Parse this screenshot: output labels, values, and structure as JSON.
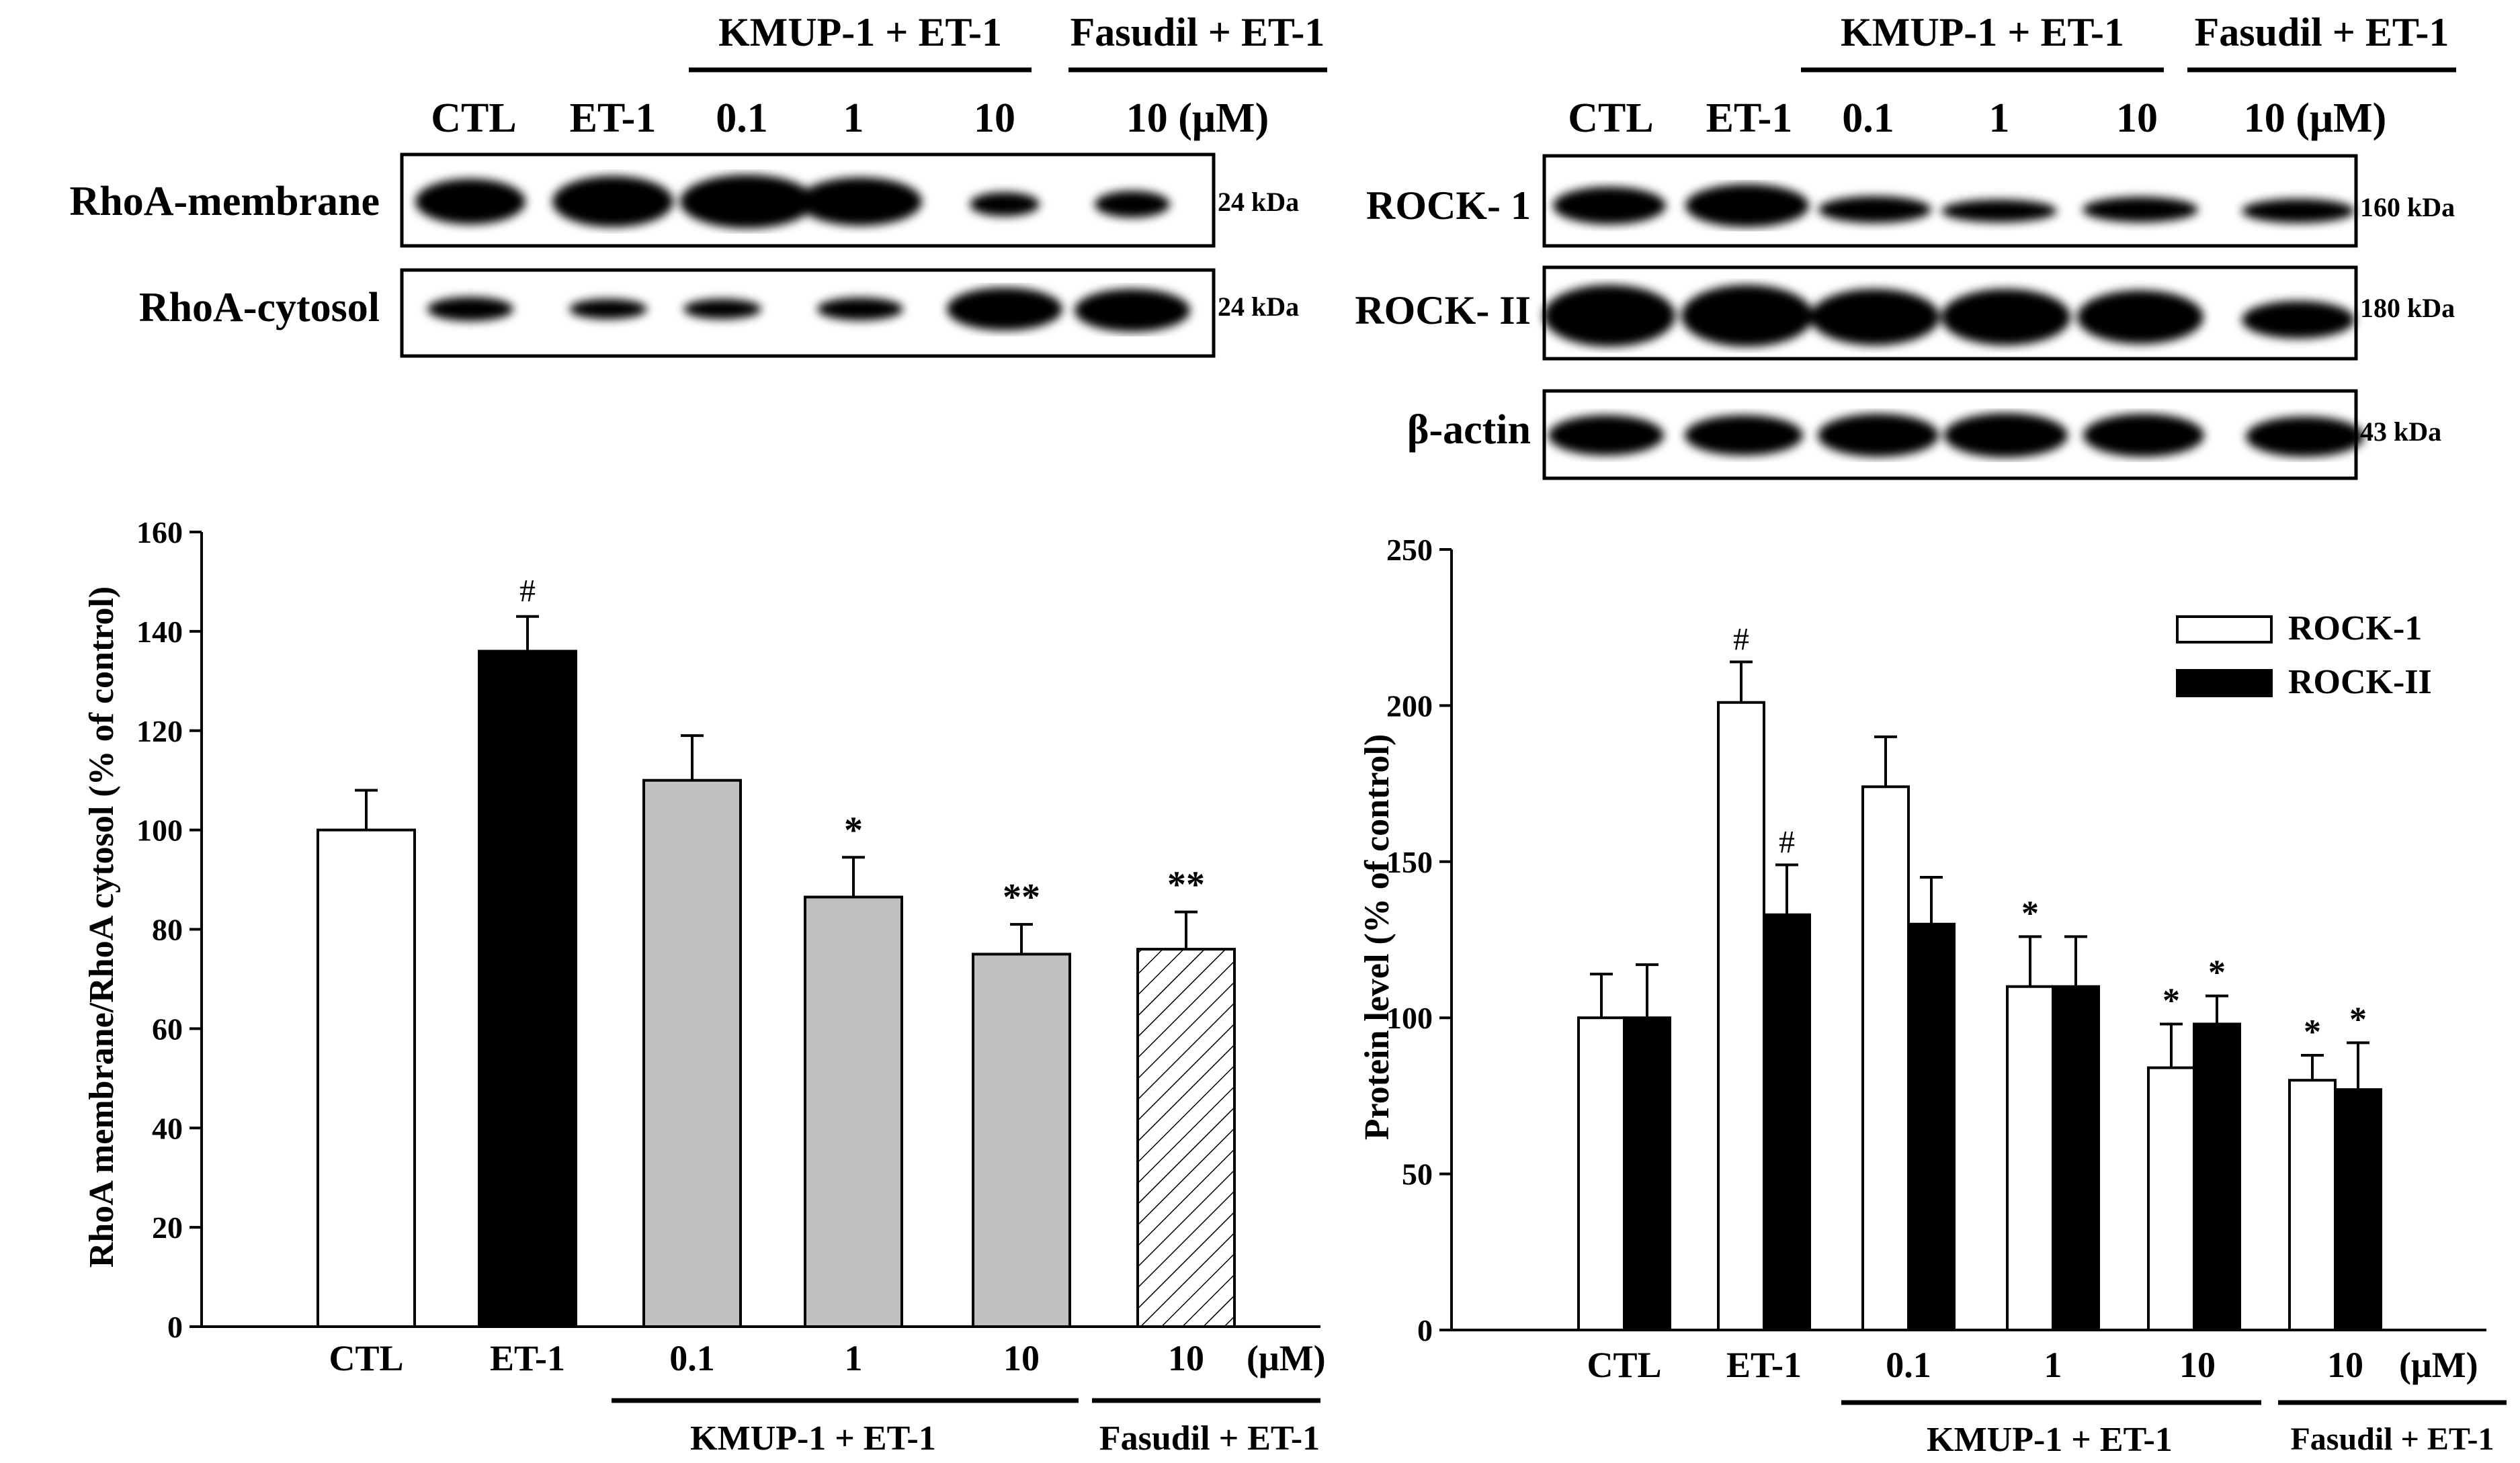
{
  "blot_left": {
    "top_group_labels": [
      "KMUP-1 + ET-1",
      "Fasudil + ET-1"
    ],
    "lane_labels": [
      "CTL",
      "ET-1",
      "0.1",
      "1",
      "10",
      "10 (μM)"
    ],
    "rows": [
      {
        "name": "RhoA-membrane",
        "kda": "24 kDa"
      },
      {
        "name": "RhoA-cytosol",
        "kda": "24 kDa"
      }
    ]
  },
  "blot_right": {
    "top_group_labels": [
      "KMUP-1 + ET-1",
      "Fasudil + ET-1"
    ],
    "lane_labels": [
      "CTL",
      "ET-1",
      "0.1",
      "1",
      "10",
      "10 (μM)"
    ],
    "rows": [
      {
        "name": "ROCK- 1",
        "kda": "160 kDa"
      },
      {
        "name": "ROCK- II",
        "kda": "180 kDa"
      },
      {
        "name": "β-actin",
        "kda": "43 kDa"
      }
    ]
  },
  "chart_data": [
    {
      "type": "bar",
      "ylabel": "RhoA membrane/RhoA cytosol (% of control)",
      "ylim": [
        0,
        160
      ],
      "yticks": [
        0,
        20,
        40,
        60,
        80,
        100,
        120,
        140,
        160
      ],
      "categories": [
        "CTL",
        "ET-1",
        "0.1",
        "1",
        "10",
        "10"
      ],
      "unit_label": "(μM)",
      "values": [
        100,
        136,
        110,
        86.5,
        75,
        76
      ],
      "errors": [
        8,
        7,
        9,
        8,
        6,
        7.5
      ],
      "fills": [
        "#ffffff",
        "#000000",
        "#c0c0c0",
        "#c0c0c0",
        "#c0c0c0",
        "hatch"
      ],
      "annotations": [
        "",
        "#",
        "",
        "*",
        "**",
        "**"
      ],
      "group_labels": [
        "KMUP-1 + ET-1",
        "Fasudil + ET-1"
      ]
    },
    {
      "type": "bar",
      "ylabel": "Protein level (% of control)",
      "ylim": [
        0,
        250
      ],
      "yticks": [
        0,
        50,
        100,
        150,
        200,
        250
      ],
      "categories": [
        "CTL",
        "ET-1",
        "0.1",
        "1",
        "10",
        "10"
      ],
      "unit_label": "(μM)",
      "series": [
        {
          "name": "ROCK-1",
          "color": "#ffffff",
          "values": [
            100,
            201,
            174,
            110,
            84,
            80
          ],
          "errors": [
            14,
            13,
            16,
            16,
            14,
            8
          ],
          "annotations": [
            "",
            "#",
            "",
            "*",
            "*",
            "*"
          ]
        },
        {
          "name": "ROCK-II",
          "color": "#000000",
          "values": [
            100,
            133,
            130,
            110,
            98,
            77
          ],
          "errors": [
            17,
            16,
            15,
            16,
            9,
            15
          ],
          "annotations": [
            "",
            "#",
            "",
            "",
            "*",
            "*"
          ]
        }
      ],
      "legend": "top-right",
      "group_labels": [
        "KMUP-1 + ET-1",
        "Fasudil + ET-1"
      ]
    }
  ]
}
